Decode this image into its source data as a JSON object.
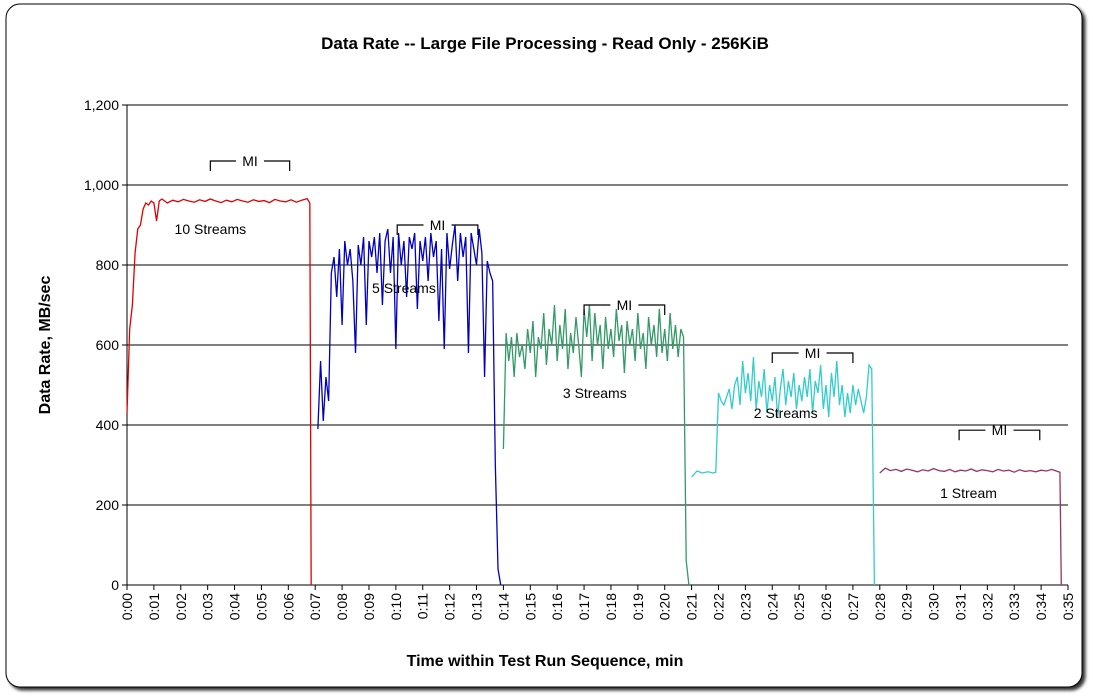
{
  "chart_data": {
    "type": "line",
    "title": "Data Rate -- Large File Processing - Read Only - 256KiB",
    "x_label": "Time within Test Run Sequence, min",
    "y_label": "Data Rate, MB/sec",
    "xlim": [
      0,
      35
    ],
    "ylim": [
      0,
      1200
    ],
    "xticks": [
      {
        "value": 0,
        "label": "0:00"
      },
      {
        "value": 1,
        "label": "0:01"
      },
      {
        "value": 2,
        "label": "0:02"
      },
      {
        "value": 3,
        "label": "0:03"
      },
      {
        "value": 4,
        "label": "0:04"
      },
      {
        "value": 5,
        "label": "0:05"
      },
      {
        "value": 6,
        "label": "0:06"
      },
      {
        "value": 7,
        "label": "0:07"
      },
      {
        "value": 8,
        "label": "0:08"
      },
      {
        "value": 9,
        "label": "0:09"
      },
      {
        "value": 10,
        "label": "0:10"
      },
      {
        "value": 11,
        "label": "0:11"
      },
      {
        "value": 12,
        "label": "0:12"
      },
      {
        "value": 13,
        "label": "0:13"
      },
      {
        "value": 14,
        "label": "0:14"
      },
      {
        "value": 15,
        "label": "0:15"
      },
      {
        "value": 16,
        "label": "0:16"
      },
      {
        "value": 17,
        "label": "0:17"
      },
      {
        "value": 18,
        "label": "0:18"
      },
      {
        "value": 19,
        "label": "0:19"
      },
      {
        "value": 20,
        "label": "0:20"
      },
      {
        "value": 21,
        "label": "0:21"
      },
      {
        "value": 22,
        "label": "0:22"
      },
      {
        "value": 23,
        "label": "0:23"
      },
      {
        "value": 24,
        "label": "0:24"
      },
      {
        "value": 25,
        "label": "0:25"
      },
      {
        "value": 26,
        "label": "0:26"
      },
      {
        "value": 27,
        "label": "0:27"
      },
      {
        "value": 28,
        "label": "0:28"
      },
      {
        "value": 29,
        "label": "0:29"
      },
      {
        "value": 30,
        "label": "0:30"
      },
      {
        "value": 31,
        "label": "0:31"
      },
      {
        "value": 32,
        "label": "0:32"
      },
      {
        "value": 33,
        "label": "0:33"
      },
      {
        "value": 34,
        "label": "0:34"
      },
      {
        "value": 35,
        "label": "0:35"
      }
    ],
    "yticks": [
      0,
      200,
      400,
      600,
      800,
      {
        "value": 1000,
        "label": "1,000"
      },
      {
        "value": 1200,
        "label": "1,200"
      }
    ],
    "grid": true,
    "series": [
      {
        "name": "10 Streams",
        "color": "#e00000",
        "x": [
          0,
          0.1,
          0.2,
          0.3,
          0.4,
          0.5,
          0.6,
          0.7,
          0.8,
          0.9,
          1,
          1.1,
          1.2,
          1.3,
          1.5,
          1.7,
          1.9,
          2.1,
          2.3,
          2.5,
          2.7,
          2.9,
          3.1,
          3.3,
          3.5,
          3.7,
          3.9,
          4.1,
          4.3,
          4.5,
          4.7,
          4.9,
          5.1,
          5.3,
          5.5,
          5.7,
          5.9,
          6.1,
          6.3,
          6.5,
          6.7,
          6.8,
          6.85
        ],
        "values": [
          430,
          640,
          700,
          830,
          890,
          900,
          940,
          955,
          950,
          960,
          955,
          910,
          960,
          965,
          955,
          962,
          958,
          964,
          960,
          957,
          963,
          959,
          965,
          960,
          956,
          962,
          958,
          964,
          960,
          957,
          963,
          959,
          961,
          956,
          964,
          960,
          958,
          963,
          957,
          962,
          966,
          955,
          0
        ]
      },
      {
        "name": "5 Streams",
        "color": "#0000c0",
        "x": [
          7.1,
          7.2,
          7.3,
          7.4,
          7.5,
          7.6,
          7.7,
          7.8,
          7.9,
          8,
          8.1,
          8.2,
          8.3,
          8.4,
          8.5,
          8.6,
          8.7,
          8.8,
          8.9,
          9,
          9.1,
          9.2,
          9.3,
          9.4,
          9.5,
          9.6,
          9.7,
          9.8,
          9.9,
          10,
          10.1,
          10.2,
          10.3,
          10.4,
          10.5,
          10.6,
          10.7,
          10.8,
          10.9,
          11,
          11.1,
          11.2,
          11.3,
          11.4,
          11.5,
          11.6,
          11.7,
          11.8,
          11.9,
          12,
          12.1,
          12.2,
          12.3,
          12.4,
          12.5,
          12.6,
          12.7,
          12.8,
          12.9,
          13,
          13.1,
          13.2,
          13.3,
          13.4,
          13.5,
          13.6,
          13.7,
          13.8,
          13.9
        ],
        "values": [
          390,
          560,
          410,
          520,
          460,
          780,
          820,
          720,
          840,
          650,
          860,
          800,
          840,
          760,
          580,
          850,
          800,
          870,
          650,
          860,
          820,
          870,
          780,
          880,
          700,
          860,
          890,
          780,
          870,
          590,
          880,
          800,
          860,
          720,
          870,
          840,
          880,
          690,
          860,
          810,
          870,
          760,
          880,
          820,
          860,
          660,
          840,
          590,
          880,
          790,
          850,
          900,
          760,
          880,
          820,
          870,
          580,
          880,
          840,
          800,
          890,
          830,
          520,
          810,
          780,
          760,
          300,
          40,
          0
        ]
      },
      {
        "name": "3 Streams",
        "color": "#339966",
        "x": [
          14,
          14.1,
          14.2,
          14.3,
          14.4,
          14.5,
          14.6,
          14.7,
          14.8,
          14.9,
          15,
          15.1,
          15.2,
          15.3,
          15.4,
          15.5,
          15.6,
          15.7,
          15.8,
          15.9,
          16,
          16.1,
          16.2,
          16.3,
          16.4,
          16.5,
          16.6,
          16.7,
          16.8,
          16.9,
          17,
          17.1,
          17.2,
          17.3,
          17.4,
          17.5,
          17.6,
          17.7,
          17.8,
          17.9,
          18,
          18.1,
          18.2,
          18.3,
          18.4,
          18.5,
          18.6,
          18.7,
          18.8,
          18.9,
          19,
          19.1,
          19.2,
          19.3,
          19.4,
          19.5,
          19.6,
          19.7,
          19.8,
          19.9,
          20,
          20.1,
          20.2,
          20.3,
          20.4,
          20.5,
          20.6,
          20.7,
          20.8,
          20.9
        ],
        "values": [
          340,
          630,
          560,
          620,
          520,
          630,
          570,
          600,
          540,
          640,
          580,
          660,
          520,
          620,
          590,
          680,
          550,
          640,
          600,
          700,
          560,
          650,
          590,
          690,
          540,
          630,
          580,
          670,
          600,
          520,
          690,
          620,
          700,
          560,
          680,
          600,
          650,
          540,
          670,
          590,
          640,
          570,
          690,
          610,
          650,
          530,
          660,
          600,
          640,
          560,
          680,
          590,
          630,
          540,
          670,
          600,
          650,
          570,
          690,
          580,
          640,
          560,
          680,
          590,
          650,
          570,
          640,
          620,
          60,
          0
        ]
      },
      {
        "name": "2 Streams",
        "color": "#33cccc",
        "x": [
          21,
          21.2,
          21.4,
          21.6,
          21.8,
          21.9,
          22,
          22.1,
          22.2,
          22.3,
          22.4,
          22.5,
          22.6,
          22.7,
          22.8,
          22.9,
          23,
          23.1,
          23.2,
          23.3,
          23.4,
          23.5,
          23.6,
          23.7,
          23.8,
          23.9,
          24,
          24.1,
          24.2,
          24.3,
          24.4,
          24.5,
          24.6,
          24.7,
          24.8,
          24.9,
          25,
          25.1,
          25.2,
          25.3,
          25.4,
          25.5,
          25.6,
          25.7,
          25.8,
          25.9,
          26,
          26.1,
          26.2,
          26.3,
          26.4,
          26.5,
          26.6,
          26.7,
          26.8,
          26.9,
          27,
          27.1,
          27.2,
          27.3,
          27.4,
          27.5,
          27.6,
          27.7,
          27.8
        ],
        "values": [
          270,
          285,
          280,
          283,
          280,
          282,
          480,
          460,
          450,
          470,
          490,
          440,
          500,
          520,
          450,
          560,
          480,
          530,
          460,
          570,
          440,
          510,
          470,
          540,
          430,
          500,
          460,
          520,
          420,
          490,
          540,
          450,
          510,
          470,
          530,
          440,
          500,
          460,
          520,
          470,
          540,
          430,
          510,
          480,
          550,
          440,
          500,
          420,
          530,
          470,
          560,
          450,
          500,
          420,
          480,
          430,
          500,
          450,
          490,
          460,
          430,
          470,
          550,
          540,
          0
        ]
      },
      {
        "name": "1 Stream",
        "color": "#993366",
        "x": [
          28,
          28.2,
          28.4,
          28.6,
          28.8,
          29,
          29.2,
          29.4,
          29.6,
          29.8,
          30,
          30.2,
          30.4,
          30.6,
          30.8,
          31,
          31.2,
          31.4,
          31.6,
          31.8,
          32,
          32.2,
          32.4,
          32.6,
          32.8,
          33,
          33.2,
          33.4,
          33.6,
          33.8,
          34,
          34.2,
          34.4,
          34.6,
          34.7,
          34.75
        ],
        "values": [
          280,
          292,
          286,
          289,
          284,
          290,
          287,
          283,
          288,
          285,
          291,
          286,
          284,
          289,
          283,
          287,
          285,
          290,
          284,
          288,
          286,
          283,
          289,
          285,
          287,
          282,
          288,
          284,
          286,
          283,
          287,
          285,
          289,
          284,
          282,
          0
        ]
      }
    ],
    "annotations": [
      {
        "text": "MI",
        "start": 3.1,
        "end": 6.05,
        "y": 1060
      },
      {
        "text": "MI",
        "start": 10.05,
        "end": 13.05,
        "y": 900
      },
      {
        "text": "MI",
        "start": 17,
        "end": 20,
        "y": 700
      },
      {
        "text": "MI",
        "start": 24,
        "end": 27,
        "y": 580
      },
      {
        "text": "MI",
        "start": 30.95,
        "end": 33.95,
        "y": 387
      }
    ]
  }
}
